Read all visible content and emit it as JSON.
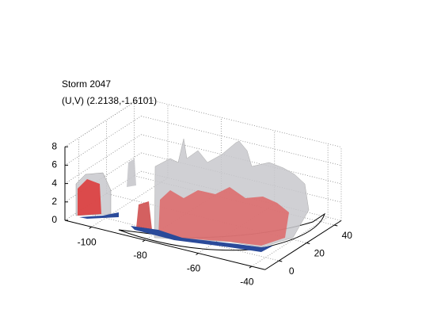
{
  "chart_data": {
    "type": "surface3d",
    "title": "Storm 2047",
    "subtitle": "(U,V) (2.2138,-1.6101)",
    "xlim": [
      -110,
      -35
    ],
    "xticks": [
      -100,
      -80,
      -60,
      -40
    ],
    "ylim": [
      -10,
      45
    ],
    "yticks": [
      0,
      20,
      40
    ],
    "zlim": [
      0,
      8
    ],
    "zticks": [
      0,
      2,
      4,
      6,
      8
    ],
    "grid": true
  }
}
